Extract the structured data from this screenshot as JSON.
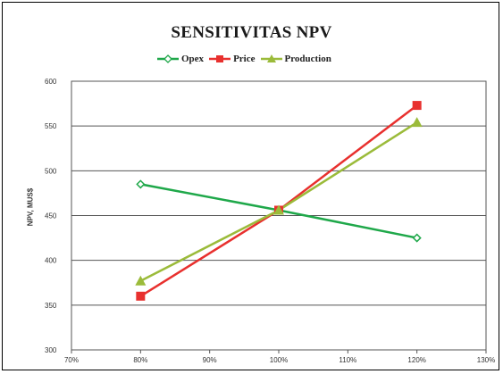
{
  "chart_data": {
    "type": "line",
    "title": "SENSITIVITAS NPV",
    "xlabel": "",
    "ylabel": "NPV, MUS$",
    "x": [
      70,
      80,
      90,
      100,
      110,
      120,
      130
    ],
    "x_tick_labels": [
      "70%",
      "80%",
      "90%",
      "100%",
      "110%",
      "120%",
      "130%"
    ],
    "y_ticks": [
      300,
      350,
      400,
      450,
      500,
      550,
      600
    ],
    "ylim": [
      300,
      600
    ],
    "xlim": [
      70,
      130
    ],
    "grid": "horizontal",
    "legend_position": "top-center",
    "series": [
      {
        "name": "Opex",
        "color": "#1fa84a",
        "marker": "diamond",
        "x": [
          80,
          100,
          120
        ],
        "values": [
          485,
          456,
          425
        ]
      },
      {
        "name": "Price",
        "color": "#e8302e",
        "marker": "square",
        "x": [
          80,
          100,
          120
        ],
        "values": [
          360,
          456,
          573
        ]
      },
      {
        "name": "Production",
        "color": "#9bbb3a",
        "marker": "triangle",
        "x": [
          80,
          100,
          120
        ],
        "values": [
          377,
          456,
          554
        ]
      }
    ]
  }
}
